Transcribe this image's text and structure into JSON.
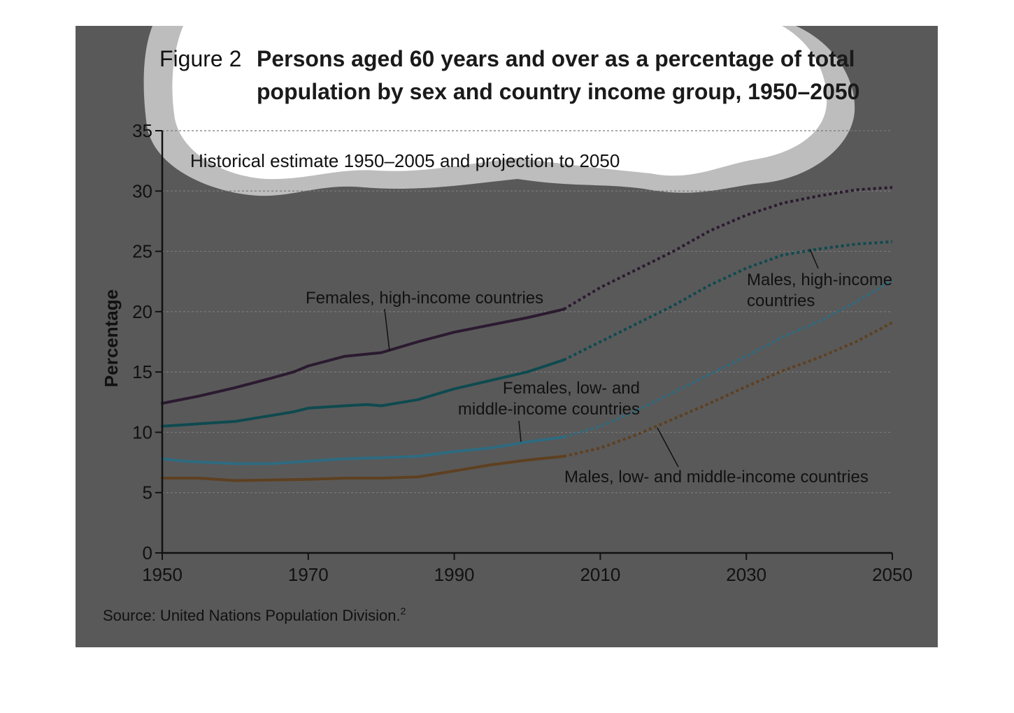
{
  "colors": {
    "panel": "#595959",
    "cloud_outer": "#bdbdbd",
    "cloud_inner": "#ffffff",
    "grid": "#7a7a7a",
    "axis": "#111111"
  },
  "figure": {
    "label": "Figure 2",
    "title_line1": "Persons aged 60 years and over as a percentage of total",
    "title_line2": "population by sex and country income group, 1950–2050",
    "subtitle": "Historical estimate 1950–2005 and projection to 2050",
    "source": "Source: United Nations Population Division.",
    "source_note": "2"
  },
  "chart_data": {
    "type": "line",
    "ylabel": "Percentage",
    "xlabel": "",
    "xlim": [
      1950,
      2050
    ],
    "ylim": [
      0,
      35
    ],
    "x_ticks": [
      "1950",
      "1970",
      "1990",
      "2010",
      "2030",
      "2050"
    ],
    "y_ticks": [
      "0",
      "5",
      "10",
      "15",
      "20",
      "25",
      "30",
      "35"
    ],
    "grid": "horizontal dashed",
    "historical_end": 2005,
    "series": [
      {
        "name": "Females, high-income countries",
        "color": "#2b1a30",
        "points": [
          [
            1950,
            12.4
          ],
          [
            1955,
            13.0
          ],
          [
            1960,
            13.7
          ],
          [
            1965,
            14.5
          ],
          [
            1968,
            15.0
          ],
          [
            1970,
            15.5
          ],
          [
            1975,
            16.3
          ],
          [
            1980,
            16.6
          ],
          [
            1985,
            17.5
          ],
          [
            1990,
            18.3
          ],
          [
            1995,
            18.9
          ],
          [
            2000,
            19.5
          ],
          [
            2005,
            20.2
          ],
          [
            2010,
            22.0
          ],
          [
            2015,
            23.5
          ],
          [
            2020,
            25.0
          ],
          [
            2025,
            26.7
          ],
          [
            2030,
            28.0
          ],
          [
            2035,
            29.0
          ],
          [
            2040,
            29.6
          ],
          [
            2045,
            30.1
          ],
          [
            2050,
            30.3
          ]
        ]
      },
      {
        "name": "Males, high-income countries",
        "color": "#0f4a4f",
        "points": [
          [
            1950,
            10.5
          ],
          [
            1955,
            10.7
          ],
          [
            1960,
            10.9
          ],
          [
            1965,
            11.4
          ],
          [
            1968,
            11.7
          ],
          [
            1970,
            12.0
          ],
          [
            1975,
            12.2
          ],
          [
            1978,
            12.3
          ],
          [
            1980,
            12.2
          ],
          [
            1985,
            12.7
          ],
          [
            1990,
            13.6
          ],
          [
            1995,
            14.3
          ],
          [
            2000,
            15.0
          ],
          [
            2005,
            16.0
          ],
          [
            2010,
            17.5
          ],
          [
            2015,
            19.0
          ],
          [
            2020,
            20.5
          ],
          [
            2025,
            22.2
          ],
          [
            2030,
            23.6
          ],
          [
            2035,
            24.7
          ],
          [
            2040,
            25.2
          ],
          [
            2045,
            25.6
          ],
          [
            2050,
            25.8
          ]
        ]
      },
      {
        "name": "Females, low- and middle-income countries",
        "color": "#2e6b80",
        "points": [
          [
            1950,
            7.8
          ],
          [
            1953,
            7.6
          ],
          [
            1960,
            7.4
          ],
          [
            1965,
            7.4
          ],
          [
            1970,
            7.6
          ],
          [
            1975,
            7.8
          ],
          [
            1980,
            7.9
          ],
          [
            1985,
            8.0
          ],
          [
            1990,
            8.4
          ],
          [
            1995,
            8.7
          ],
          [
            2000,
            9.2
          ],
          [
            2005,
            9.6
          ],
          [
            2010,
            10.5
          ],
          [
            2015,
            11.8
          ],
          [
            2020,
            13.3
          ],
          [
            2025,
            14.8
          ],
          [
            2030,
            16.3
          ],
          [
            2035,
            17.9
          ],
          [
            2040,
            19.2
          ],
          [
            2045,
            20.8
          ],
          [
            2050,
            22.6
          ]
        ]
      },
      {
        "name": "Males, low- and middle-income countries",
        "color": "#5e4020",
        "points": [
          [
            1950,
            6.2
          ],
          [
            1955,
            6.2
          ],
          [
            1960,
            6.0
          ],
          [
            1970,
            6.1
          ],
          [
            1975,
            6.2
          ],
          [
            1980,
            6.2
          ],
          [
            1985,
            6.3
          ],
          [
            1990,
            6.8
          ],
          [
            1995,
            7.3
          ],
          [
            2000,
            7.7
          ],
          [
            2005,
            8.0
          ],
          [
            2010,
            8.7
          ],
          [
            2015,
            9.8
          ],
          [
            2020,
            11.1
          ],
          [
            2025,
            12.4
          ],
          [
            2030,
            13.8
          ],
          [
            2035,
            15.1
          ],
          [
            2040,
            16.2
          ],
          [
            2045,
            17.5
          ],
          [
            2050,
            19.1
          ]
        ]
      }
    ],
    "annotations": [
      {
        "key": "fh",
        "lines": [
          "Females, high-income countries"
        ]
      },
      {
        "key": "mh",
        "lines": [
          "Males, high-income",
          "countries"
        ]
      },
      {
        "key": "fl",
        "lines": [
          "Females, low- and",
          "middle-income countries"
        ]
      },
      {
        "key": "ml",
        "lines": [
          "Males, low- and middle-income countries"
        ]
      }
    ]
  }
}
